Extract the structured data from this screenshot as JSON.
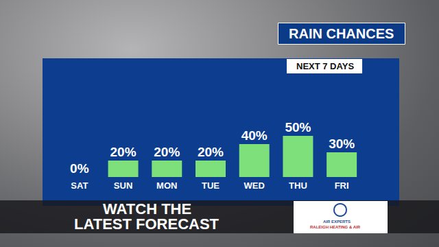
{
  "chart_data": {
    "type": "bar",
    "title": "RAIN CHANCES",
    "subtitle": "NEXT 7 DAYS",
    "categories": [
      "SAT",
      "SUN",
      "MON",
      "TUE",
      "WED",
      "THU",
      "FRI"
    ],
    "values": [
      0,
      20,
      20,
      20,
      40,
      50,
      30
    ],
    "value_labels": [
      "0%",
      "20%",
      "20%",
      "20%",
      "40%",
      "50%",
      "30%"
    ],
    "data_labels": true,
    "color": "#7de07b",
    "ylim": [
      0,
      100
    ],
    "tick_labels": "x",
    "grid": false,
    "annotations": [
      "WATCH THE",
      "LATEST FORECAST",
      "AIR EXPERTS",
      "RALEIGH HEATING & AIR"
    ]
  }
}
